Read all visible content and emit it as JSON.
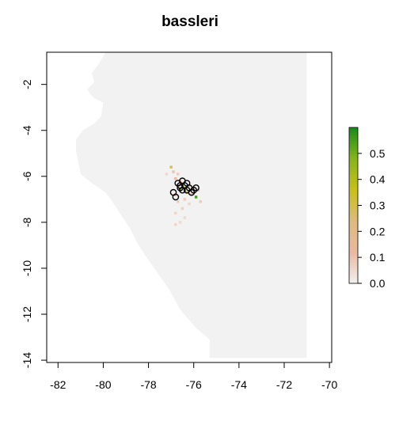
{
  "chart_data": {
    "type": "heatmap",
    "title": "bassleri",
    "xlabel": "",
    "ylabel": "",
    "xlim": [
      -82.5,
      -69.9
    ],
    "ylim": [
      -14.1,
      -0.6
    ],
    "x_ticks": [
      -82,
      -80,
      -78,
      -76,
      -74,
      -72,
      -70
    ],
    "y_ticks": [
      -2,
      -4,
      -6,
      -8,
      -10,
      -12,
      -14
    ],
    "x_tick_labels": [
      "-82",
      "-80",
      "-78",
      "-76",
      "-74",
      "-72",
      "-70"
    ],
    "y_tick_labels": [
      "-2",
      "-4",
      "-6",
      "-8",
      "-10",
      "-12",
      "-14"
    ],
    "grid": false,
    "background_color": "#f2f2f2",
    "landmass_outline": [
      [
        -77.5,
        -0.6
      ],
      [
        -71,
        -0.6
      ],
      [
        -71,
        -13.9
      ],
      [
        -75.3,
        -13.9
      ],
      [
        -75.3,
        -13.1
      ],
      [
        -75.9,
        -12.6
      ],
      [
        -76.6,
        -11.8
      ],
      [
        -77.1,
        -10.9
      ],
      [
        -77.6,
        -10.2
      ],
      [
        -78.1,
        -9.5
      ],
      [
        -78.5,
        -8.9
      ],
      [
        -78.8,
        -8.3
      ],
      [
        -79.2,
        -7.7
      ],
      [
        -79.6,
        -7.1
      ],
      [
        -79.9,
        -6.7
      ],
      [
        -80.5,
        -6.3
      ],
      [
        -81.0,
        -5.9
      ],
      [
        -81.1,
        -5.4
      ],
      [
        -81.2,
        -4.9
      ],
      [
        -81.2,
        -4.4
      ],
      [
        -80.9,
        -4.0
      ],
      [
        -80.4,
        -3.7
      ],
      [
        -80.1,
        -3.4
      ],
      [
        -80.0,
        -2.8
      ],
      [
        -80.4,
        -2.6
      ],
      [
        -80.6,
        -2.4
      ],
      [
        -80.7,
        -2.2
      ],
      [
        -80.4,
        -1.9
      ],
      [
        -80.5,
        -1.5
      ],
      [
        -80.2,
        -1.1
      ],
      [
        -80.0,
        -0.8
      ],
      [
        -79.9,
        -0.6
      ]
    ],
    "suitability_cells": [
      {
        "x": -77.0,
        "y": -5.6,
        "value": 0.28
      },
      {
        "x": -76.9,
        "y": -5.8,
        "value": 0.1
      },
      {
        "x": -76.7,
        "y": -5.9,
        "value": 0.08
      },
      {
        "x": -76.8,
        "y": -6.1,
        "value": 0.12
      },
      {
        "x": -76.6,
        "y": -6.2,
        "value": 0.1
      },
      {
        "x": -76.5,
        "y": -6.3,
        "value": 0.15
      },
      {
        "x": -76.7,
        "y": -6.4,
        "value": 0.2
      },
      {
        "x": -76.4,
        "y": -6.5,
        "value": 0.35
      },
      {
        "x": -76.2,
        "y": -6.4,
        "value": 0.18
      },
      {
        "x": -76.0,
        "y": -6.5,
        "value": 0.12
      },
      {
        "x": -75.8,
        "y": -6.6,
        "value": 0.1
      },
      {
        "x": -76.6,
        "y": -6.6,
        "value": 0.45
      },
      {
        "x": -76.3,
        "y": -6.7,
        "value": 0.3
      },
      {
        "x": -76.8,
        "y": -6.8,
        "value": 0.12
      },
      {
        "x": -76.1,
        "y": -6.8,
        "value": 0.1
      },
      {
        "x": -75.9,
        "y": -6.9,
        "value": 0.55
      },
      {
        "x": -76.4,
        "y": -7.0,
        "value": 0.08
      },
      {
        "x": -76.7,
        "y": -7.1,
        "value": 0.08
      },
      {
        "x": -76.2,
        "y": -7.2,
        "value": 0.06
      },
      {
        "x": -75.7,
        "y": -7.1,
        "value": 0.08
      },
      {
        "x": -76.5,
        "y": -7.4,
        "value": 0.07
      },
      {
        "x": -76.8,
        "y": -7.6,
        "value": 0.06
      },
      {
        "x": -76.4,
        "y": -7.8,
        "value": 0.05
      },
      {
        "x": -76.6,
        "y": -8.0,
        "value": 0.05
      },
      {
        "x": -76.8,
        "y": -8.1,
        "value": 0.06
      },
      {
        "x": -77.2,
        "y": -5.9,
        "value": 0.05
      }
    ],
    "occurrence_points": [
      {
        "x": -76.9,
        "y": -6.7
      },
      {
        "x": -76.8,
        "y": -6.9
      },
      {
        "x": -76.7,
        "y": -6.3
      },
      {
        "x": -76.6,
        "y": -6.5
      },
      {
        "x": -76.5,
        "y": -6.2
      },
      {
        "x": -76.4,
        "y": -6.4
      },
      {
        "x": -76.3,
        "y": -6.6
      },
      {
        "x": -76.2,
        "y": -6.5
      },
      {
        "x": -76.1,
        "y": -6.7
      },
      {
        "x": -76.0,
        "y": -6.6
      },
      {
        "x": -75.9,
        "y": -6.5
      },
      {
        "x": -76.5,
        "y": -6.6
      },
      {
        "x": -76.6,
        "y": -6.4
      },
      {
        "x": -76.3,
        "y": -6.3
      }
    ],
    "legend": {
      "title": "",
      "placement": "right",
      "min": 0.0,
      "max": 0.6,
      "ticks": [
        0.0,
        0.1,
        0.2,
        0.3,
        0.4,
        0.5
      ],
      "tick_labels": [
        "0.0",
        "0.1",
        "0.2",
        "0.3",
        "0.4",
        "0.5"
      ],
      "colors": [
        "#f2f2f2",
        "#e9b9a1",
        "#ddbb7f",
        "#c8c01a",
        "#86b51b",
        "#1b8a1b"
      ]
    }
  }
}
